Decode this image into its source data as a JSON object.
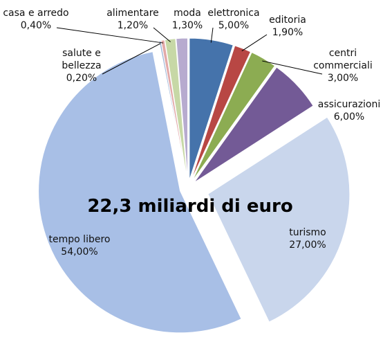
{
  "chart_data": {
    "type": "pie",
    "annotation": "22,3 miliardi di euro",
    "categories": [
      "elettronica",
      "editoria",
      "centri commerciali",
      "assicurazioni",
      "turismo",
      "tempo libero",
      "salute e bellezza",
      "casa e arredo",
      "alimentare",
      "moda"
    ],
    "values": [
      5,
      1.9,
      3,
      6,
      27,
      54,
      0.2,
      0.4,
      1.2,
      1.3
    ],
    "value_labels": [
      "5,00%",
      "1,90%",
      "3,00%",
      "6,00%",
      "27,00%",
      "54,00%",
      "0,20%",
      "0,40%",
      "1,20%",
      "1,30%"
    ],
    "colors": [
      "#4573ab",
      "#b84744",
      "#8cac52",
      "#735a96",
      "#c9d6ec",
      "#a8bfe6",
      "#9bb3d6",
      "#e2a9a8",
      "#c7d8a6",
      "#b7abcf"
    ]
  }
}
